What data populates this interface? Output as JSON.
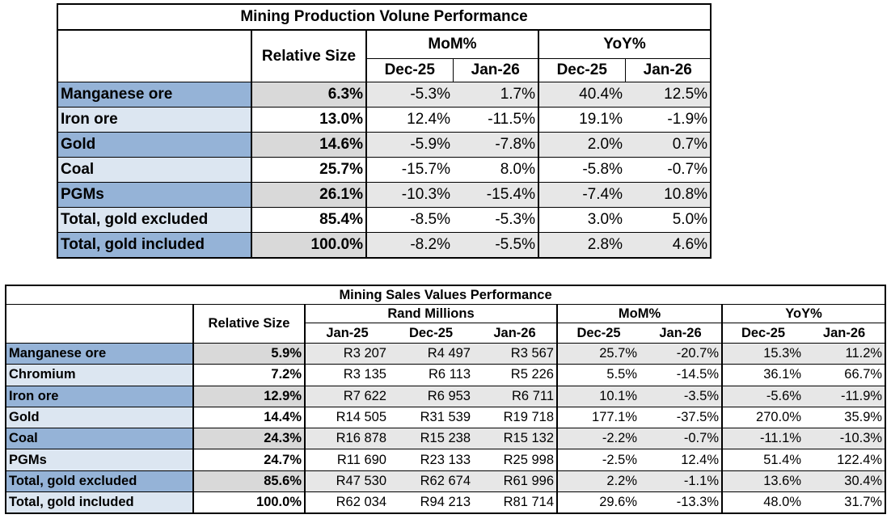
{
  "production": {
    "title": "Mining Production Volune Performance",
    "relative_size_label": "Relative Size",
    "mom_label": "MoM%",
    "yoy_label": "YoY%",
    "periods": [
      "Dec-25",
      "Jan-26",
      "Dec-25",
      "Jan-26"
    ],
    "rows": [
      {
        "name": "Manganese ore",
        "size": "6.3%",
        "vals": [
          "-5.3%",
          "1.7%",
          "40.4%",
          "12.5%"
        ]
      },
      {
        "name": "Iron ore",
        "size": "13.0%",
        "vals": [
          "12.4%",
          "-11.5%",
          "19.1%",
          "-1.9%"
        ]
      },
      {
        "name": "Gold",
        "size": "14.6%",
        "vals": [
          "-5.9%",
          "-7.8%",
          "2.0%",
          "0.7%"
        ]
      },
      {
        "name": "Coal",
        "size": "25.7%",
        "vals": [
          "-15.7%",
          "8.0%",
          "-5.8%",
          "-0.7%"
        ]
      },
      {
        "name": "PGMs",
        "size": "26.1%",
        "vals": [
          "-10.3%",
          "-15.4%",
          "-7.4%",
          "10.8%"
        ]
      },
      {
        "name": "Total, gold excluded",
        "size": "85.4%",
        "vals": [
          "-8.5%",
          "-5.3%",
          "3.0%",
          "5.0%"
        ]
      },
      {
        "name": "Total, gold included",
        "size": "100.0%",
        "vals": [
          "-8.2%",
          "-5.5%",
          "2.8%",
          "4.6%"
        ]
      }
    ]
  },
  "sales": {
    "title": "Mining Sales Values Performance",
    "relative_size_label": "Relative Size",
    "rand_label": "Rand Millions",
    "mom_label": "MoM%",
    "yoy_label": "YoY%",
    "periods": [
      "Jan-25",
      "Dec-25",
      "Jan-26",
      "Dec-25",
      "Jan-26",
      "Dec-25",
      "Jan-26"
    ],
    "rows": [
      {
        "name": "Manganese ore",
        "size": "5.9%",
        "vals": [
          "R3 207",
          "R4 497",
          "R3 567",
          "25.7%",
          "-20.7%",
          "15.3%",
          "11.2%"
        ]
      },
      {
        "name": "Chromium",
        "size": "7.2%",
        "vals": [
          "R3 135",
          "R6 113",
          "R5 226",
          "5.5%",
          "-14.5%",
          "36.1%",
          "66.7%"
        ]
      },
      {
        "name": "Iron ore",
        "size": "12.9%",
        "vals": [
          "R7 622",
          "R6 953",
          "R6 711",
          "10.1%",
          "-3.5%",
          "-5.6%",
          "-11.9%"
        ]
      },
      {
        "name": "Gold",
        "size": "14.4%",
        "vals": [
          "R14 505",
          "R31 539",
          "R19 718",
          "177.1%",
          "-37.5%",
          "270.0%",
          "35.9%"
        ]
      },
      {
        "name": "Coal",
        "size": "24.3%",
        "vals": [
          "R16 878",
          "R15 238",
          "R15 132",
          "-2.2%",
          "-0.7%",
          "-11.1%",
          "-10.3%"
        ]
      },
      {
        "name": "PGMs",
        "size": "24.7%",
        "vals": [
          "R11 690",
          "R23 133",
          "R25 998",
          "-2.5%",
          "12.4%",
          "51.4%",
          "122.4%"
        ]
      },
      {
        "name": "Total, gold excluded",
        "size": "85.6%",
        "vals": [
          "R47 530",
          "R62 674",
          "R61 996",
          "2.2%",
          "-1.1%",
          "13.6%",
          "30.4%"
        ]
      },
      {
        "name": "Total, gold included",
        "size": "100.0%",
        "vals": [
          "R62 034",
          "R94 213",
          "R81 714",
          "29.6%",
          "-13.3%",
          "48.0%",
          "31.7%"
        ]
      }
    ]
  }
}
